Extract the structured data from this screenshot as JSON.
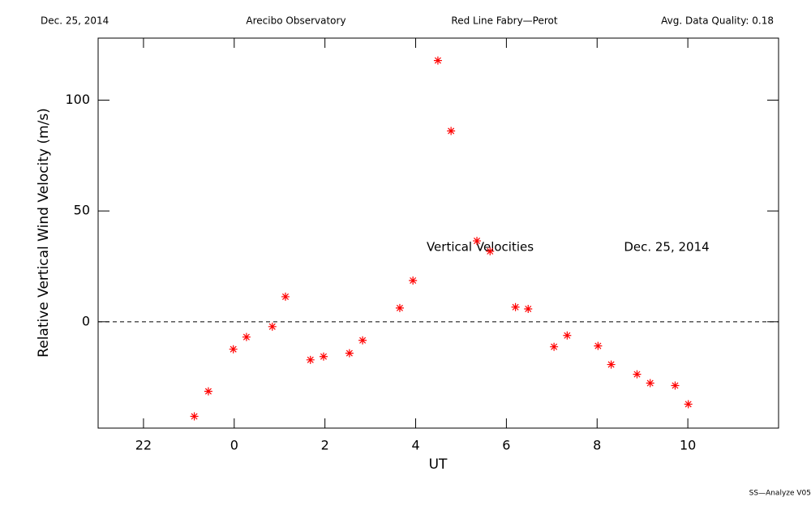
{
  "chart_data": {
    "type": "scatter",
    "header": [
      "Dec. 25, 2014",
      "Arecibo Observatory",
      "Red Line Fabry—Perot",
      "Avg. Data Quality: 0.18"
    ],
    "annotations": [
      "Vertical Velocities",
      "Dec. 25, 2014"
    ],
    "footer": "SS—Analyze V05",
    "x_label": "UT",
    "y_label": "Relative Vertical Wind Velocity (m/s)",
    "xlim": [
      -3,
      12
    ],
    "xticks": [
      {
        "value": -2,
        "label": "22"
      },
      0,
      2,
      4,
      6,
      8,
      10
    ],
    "ylim": [
      -48,
      128
    ],
    "yticks": [
      0,
      50,
      100
    ],
    "hline": 0,
    "series": [
      {
        "color": "#ff0000",
        "x": [
          -0.88,
          -0.57,
          -0.02,
          0.27,
          0.84,
          1.13,
          1.68,
          1.97,
          2.54,
          2.83,
          3.65,
          3.94,
          4.49,
          4.78,
          5.35,
          5.64,
          6.2,
          6.48,
          7.05,
          7.34,
          8.02,
          8.31,
          8.88,
          9.17,
          9.72,
          10.01
        ],
        "values": [
          -42.7,
          -31.4,
          -12.4,
          -6.9,
          -2.2,
          11.3,
          -17.2,
          -15.7,
          -14.2,
          -8.4,
          6.2,
          18.6,
          117.9,
          86.1,
          36.5,
          31.8,
          6.6,
          5.8,
          -11.3,
          -6.2,
          -10.9,
          -19.3,
          -23.7,
          -27.7,
          -28.8,
          -37.2
        ]
      }
    ]
  }
}
